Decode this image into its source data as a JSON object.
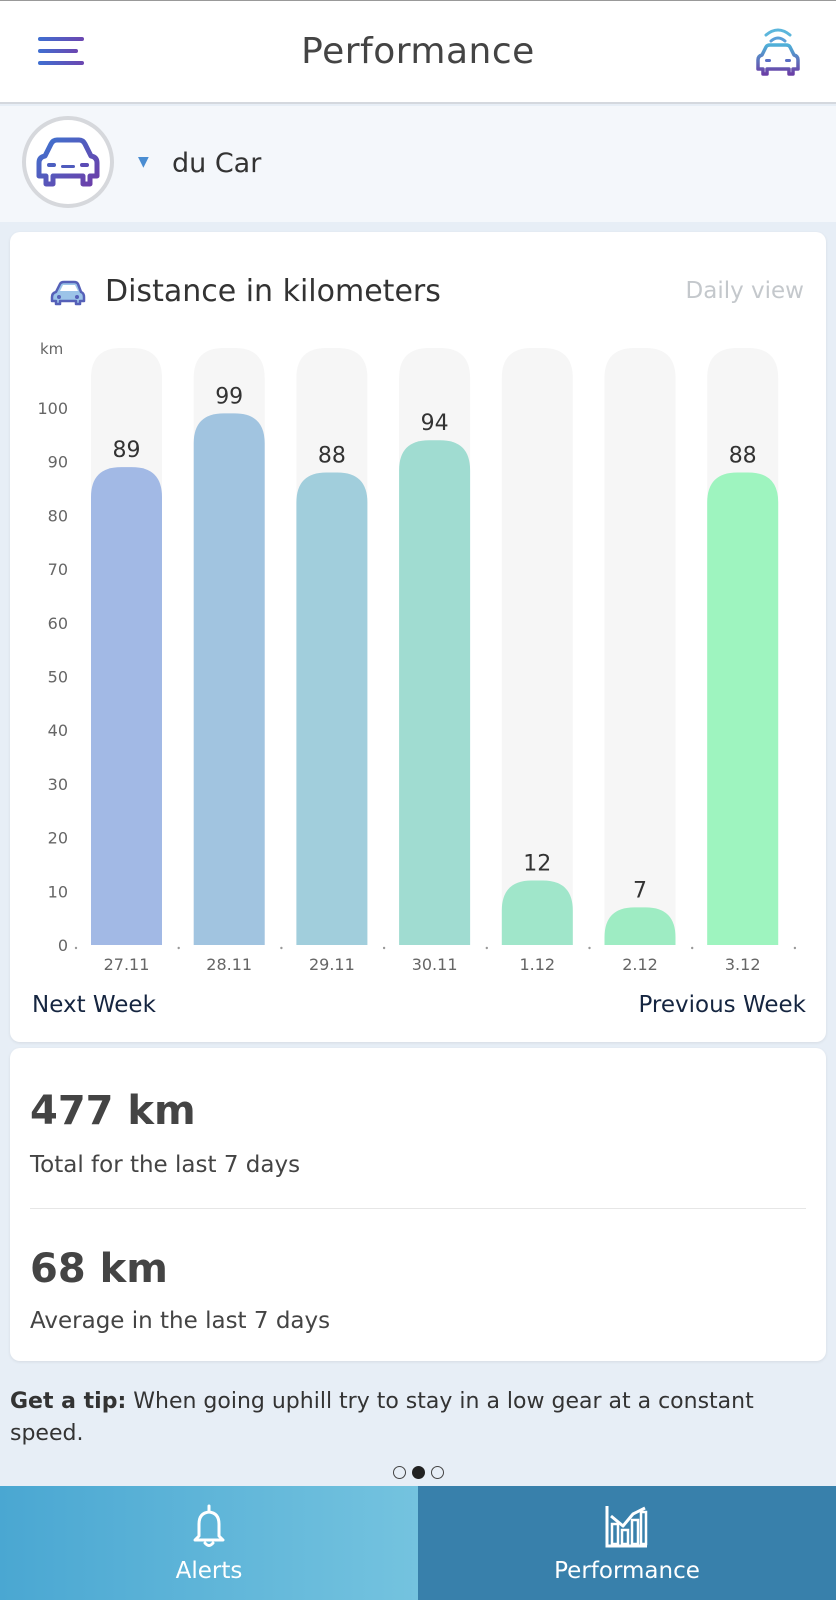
{
  "header": {
    "title": "Performance",
    "menu_icon": "hamburger-menu-icon",
    "right_icon": "connected-car-icon"
  },
  "vehicle": {
    "name": "du Car",
    "caret": "▼",
    "icon": "car-icon"
  },
  "chart_card": {
    "title": "Distance in kilometers",
    "view_mode": "Daily view",
    "next_week": "Next Week",
    "previous_week": "Previous Week"
  },
  "chart_data": {
    "type": "bar",
    "title": "Distance in kilometers",
    "ylabel": "km",
    "xlabel": "",
    "categories": [
      "27.11",
      "28.11",
      "29.11",
      "30.11",
      "1.12",
      "2.12",
      "3.12"
    ],
    "values": [
      89,
      99,
      88,
      94,
      12,
      7,
      88
    ],
    "yticks": [
      0,
      10,
      20,
      30,
      40,
      50,
      60,
      70,
      80,
      90,
      100
    ],
    "ylim": [
      0,
      110
    ],
    "bar_colors": [
      "#a2b9e5",
      "#a1c4e0",
      "#a1cedc",
      "#a0dcd1",
      "#a0e6ca",
      "#9eecc3",
      "#9ef4bf"
    ],
    "track_color": "#f6f6f6",
    "grid": false
  },
  "stats": {
    "total_value": "477 km",
    "total_label": "Total for the last 7 days",
    "average_value": "68 km",
    "average_label": "Average  in the last 7 days"
  },
  "tip": {
    "label": "Get a tip:",
    "text": " When going uphill try to stay in a low gear at a constant speed."
  },
  "pager": {
    "count": 3,
    "active": 1
  },
  "tabs": [
    {
      "label": "Alerts",
      "icon": "bell-icon"
    },
    {
      "label": "Performance",
      "icon": "performance-chart-icon"
    }
  ]
}
